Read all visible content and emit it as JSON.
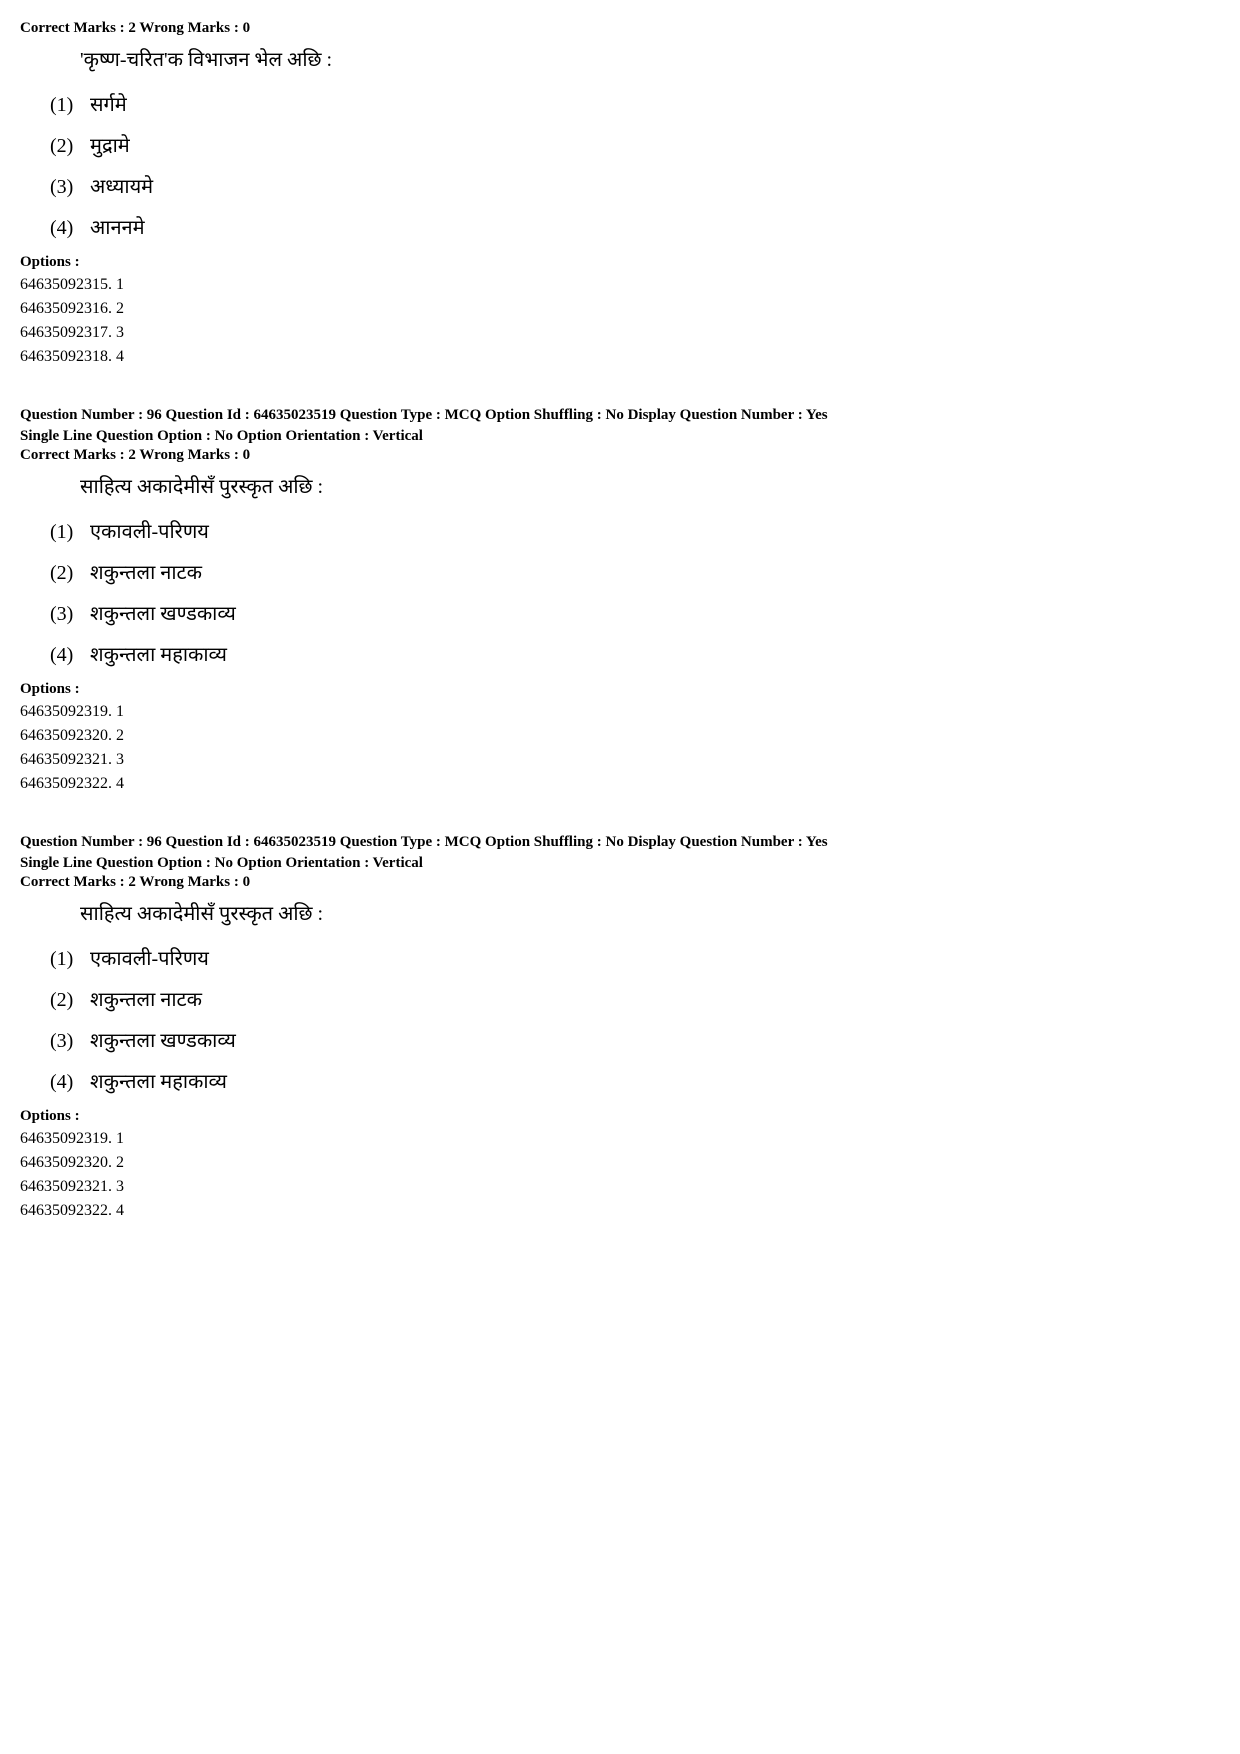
{
  "blocks": [
    {
      "marks": "Correct Marks : 2  Wrong Marks : 0",
      "stem": "'कृष्ण-चरित'क विभाजन भेल अछि :",
      "choices": [
        {
          "num": "(1)",
          "text": "सर्गमे"
        },
        {
          "num": "(2)",
          "text": "मुद्रामे"
        },
        {
          "num": "(3)",
          "text": "अध्यायमे"
        },
        {
          "num": "(4)",
          "text": "आननमे"
        }
      ],
      "optionsLabel": "Options :",
      "options": [
        "64635092315. 1",
        "64635092316. 2",
        "64635092317. 3",
        "64635092318. 4"
      ]
    },
    {
      "metaLine": "Question Number : 96  Question Id : 64635023519  Question Type : MCQ  Option Shuffling : No  Display Question Number : Yes",
      "metaSub": "Single Line Question Option : No  Option Orientation : Vertical",
      "marks": "Correct Marks : 2  Wrong Marks : 0",
      "stem": "साहित्य अकादेमीसँ पुरस्कृत अछि :",
      "choices": [
        {
          "num": "(1)",
          "text": "एकावली-परिणय"
        },
        {
          "num": "(2)",
          "text": "शकुन्तला नाटक"
        },
        {
          "num": "(3)",
          "text": "शकुन्तला खण्डकाव्य"
        },
        {
          "num": "(4)",
          "text": "शकुन्तला महाकाव्य"
        }
      ],
      "optionsLabel": "Options :",
      "options": [
        "64635092319. 1",
        "64635092320. 2",
        "64635092321. 3",
        "64635092322. 4"
      ]
    },
    {
      "metaLine": "Question Number : 96  Question Id : 64635023519  Question Type : MCQ  Option Shuffling : No  Display Question Number : Yes",
      "metaSub": "Single Line Question Option : No  Option Orientation : Vertical",
      "marks": "Correct Marks : 2  Wrong Marks : 0",
      "stem": "साहित्य अकादेमीसँ पुरस्कृत अछि :",
      "choices": [
        {
          "num": "(1)",
          "text": "एकावली-परिणय"
        },
        {
          "num": "(2)",
          "text": "शकुन्तला नाटक"
        },
        {
          "num": "(3)",
          "text": "शकुन्तला खण्डकाव्य"
        },
        {
          "num": "(4)",
          "text": "शकुन्तला महाकाव्य"
        }
      ],
      "optionsLabel": "Options :",
      "options": [
        "64635092319. 1",
        "64635092320. 2",
        "64635092321. 3",
        "64635092322. 4"
      ]
    }
  ]
}
